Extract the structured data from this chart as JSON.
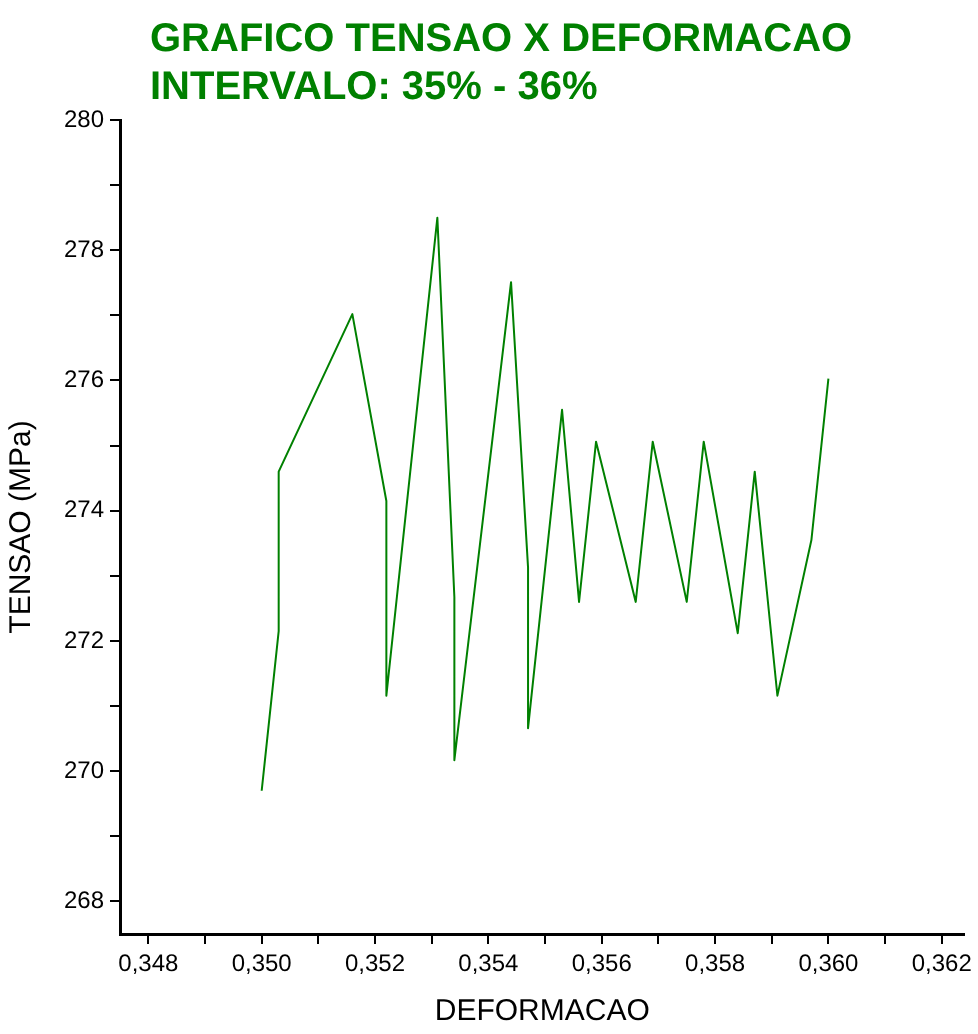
{
  "chart_data": {
    "type": "line",
    "title": "GRAFICO TENSAO X DEFORMACAO\nINTERVALO: 35% - 36%",
    "xlabel": "DEFORMACAO",
    "ylabel": "TENSAO (MPa)",
    "x": [
      0.35,
      0.3503,
      0.3503,
      0.3516,
      0.3522,
      0.3522,
      0.3531,
      0.3534,
      0.3534,
      0.3544,
      0.3547,
      0.3547,
      0.3553,
      0.3556,
      0.3559,
      0.3566,
      0.3569,
      0.3575,
      0.3578,
      0.3584,
      0.3587,
      0.3591,
      0.3597,
      0.36
    ],
    "series": [
      {
        "color": "#008000",
        "values": [
          269.7,
          272.15,
          274.6,
          277.02,
          274.15,
          271.16,
          278.5,
          272.67,
          270.17,
          277.51,
          273.13,
          270.66,
          275.55,
          272.6,
          275.06,
          272.6,
          275.06,
          272.6,
          275.06,
          272.12,
          274.6,
          271.16,
          273.55,
          276.03
        ]
      }
    ],
    "xlim": [
      0.3475,
      0.3624
    ],
    "ylim": [
      267.5,
      280
    ],
    "xticks": [
      {
        "value": 0.348,
        "label": "0,348"
      },
      {
        "value": 0.349,
        "label": null
      },
      {
        "value": 0.35,
        "label": "0,350"
      },
      {
        "value": 0.351,
        "label": null
      },
      {
        "value": 0.352,
        "label": "0,352"
      },
      {
        "value": 0.353,
        "label": null
      },
      {
        "value": 0.354,
        "label": "0,354"
      },
      {
        "value": 0.355,
        "label": null
      },
      {
        "value": 0.356,
        "label": "0,356"
      },
      {
        "value": 0.357,
        "label": null
      },
      {
        "value": 0.358,
        "label": "0,358"
      },
      {
        "value": 0.359,
        "label": null
      },
      {
        "value": 0.36,
        "label": "0,360"
      },
      {
        "value": 0.361,
        "label": null
      },
      {
        "value": 0.362,
        "label": "0,362"
      }
    ],
    "yticks": [
      268,
      {
        "value": 269,
        "label": null
      },
      270,
      {
        "value": 271,
        "label": null
      },
      272,
      {
        "value": 273,
        "label": null
      },
      274,
      {
        "value": 275,
        "label": null
      },
      276,
      {
        "value": 277,
        "label": null
      },
      278,
      {
        "value": 279,
        "label": null
      },
      280
    ],
    "marker": "none",
    "line_style": "solid",
    "grid": false,
    "legend": false
  }
}
